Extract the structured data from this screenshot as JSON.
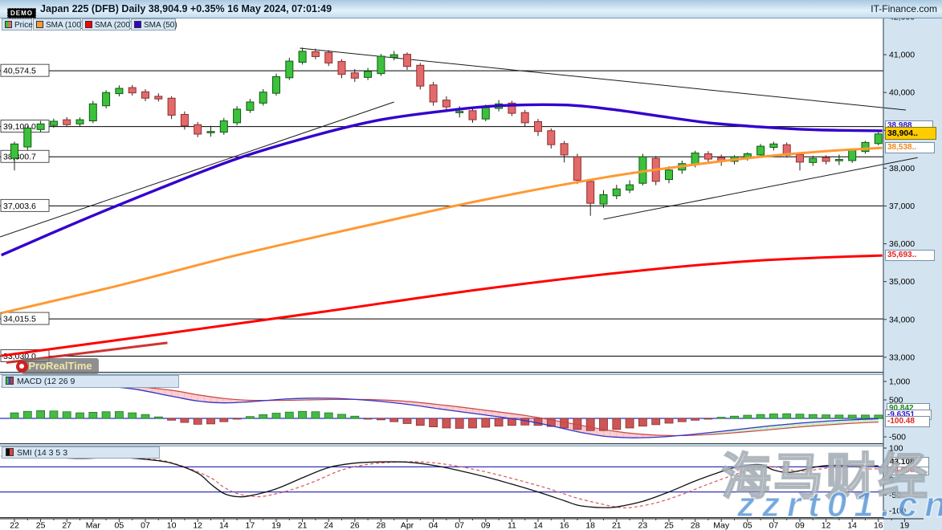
{
  "header": {
    "demo": "DEMO",
    "title": "Japan 225 (DFB) Daily 38,904.9 +0.35% 16 May 2024, 07:01:49",
    "brand": "IT-Finance.com"
  },
  "legend": {
    "price": "Price",
    "sma100": "SMA (100)",
    "sma200": "SMA (200)",
    "sma50": "SMA (50)"
  },
  "price_panel": {
    "right_ticks": [
      [
        "42,000",
        42000
      ],
      [
        "41,000",
        41000
      ],
      [
        "40,000",
        40000
      ],
      [
        "39,000",
        39000
      ],
      [
        "38,000",
        38000
      ],
      [
        "37,000",
        37000
      ],
      [
        "36,000",
        36000
      ],
      [
        "35,000",
        35000
      ],
      [
        "34,000",
        34000
      ],
      [
        "33,000",
        33000
      ]
    ],
    "levels": [
      [
        "40,574.5",
        40574.5
      ],
      [
        "39,100.0",
        39100
      ],
      [
        "38,300.7",
        38300.7
      ],
      [
        "37,003.6",
        37003.6
      ],
      [
        "34,015.5",
        34015.5
      ],
      [
        "33,030.0",
        33030
      ]
    ],
    "labels": {
      "sma50": "38,988",
      "last": "38,904..",
      "sma100": "38,538..",
      "sma200": "35,693.."
    }
  },
  "macd_panel": {
    "legend": "MACD (12 26 9",
    "right_ticks": [
      [
        "1,000",
        1000
      ],
      [
        "500",
        500
      ],
      [
        "-500",
        -500
      ]
    ],
    "values": {
      "histogram": "90.842",
      "macd": "-9.6351",
      "signal": "-100.48"
    }
  },
  "smi_panel": {
    "legend": "SMI (14 3 5 3",
    "right_ticks": [
      [
        "100",
        100
      ],
      [
        "0",
        0
      ],
      [
        "-50",
        -50
      ],
      [
        "-100",
        -100
      ]
    ],
    "values": {
      "smi": "43.108",
      "signal": "34.008"
    }
  },
  "x_axis": {
    "labels": [
      "22",
      "25",
      "27",
      "Mar",
      "05",
      "07",
      "10",
      "12",
      "14",
      "17",
      "19",
      "21",
      "24",
      "26",
      "28",
      "Apr",
      "04",
      "07",
      "09",
      "11",
      "14",
      "16",
      "18",
      "21",
      "23",
      "25",
      "28",
      "May",
      "05",
      "07",
      "09",
      "12",
      "14",
      "16",
      "19"
    ]
  },
  "watermarks": {
    "prorealtime": "ProRealTime",
    "brand_cn": "海马财经",
    "site": "zzrt01.cn"
  },
  "colors": {
    "up": "#3cc13c",
    "down": "#e36a6a",
    "sma50": "#3300cc",
    "sma100": "#ff9933",
    "sma200": "#ff0000",
    "last_price_bg": "#ffcc00",
    "panel_bg": "#ffffff",
    "chrome_bg": "#c3d9e8",
    "axis_bg": "#d3e4f0"
  },
  "chart_data": {
    "type": "candlestick",
    "instrument": "Japan 225 (DFB)",
    "timeframe": "Daily",
    "last": 38904.9,
    "change": "+0.35%",
    "as_of": "16 May 2024, 07:01:49",
    "ylim": [
      33000,
      42000
    ],
    "candles": [
      [
        38260,
        38700,
        37940,
        38640
      ],
      [
        38560,
        39120,
        38480,
        39060
      ],
      [
        39020,
        39250,
        38960,
        39170
      ],
      [
        39130,
        39310,
        39070,
        39240
      ],
      [
        39280,
        39350,
        39090,
        39150
      ],
      [
        39170,
        39340,
        39110,
        39280
      ],
      [
        39250,
        39780,
        39190,
        39700
      ],
      [
        39650,
        40060,
        39580,
        40000
      ],
      [
        39970,
        40190,
        39900,
        40110
      ],
      [
        40130,
        40200,
        39920,
        39990
      ],
      [
        40020,
        40090,
        39770,
        39850
      ],
      [
        39900,
        39980,
        39760,
        39830
      ],
      [
        39850,
        39900,
        39300,
        39400
      ],
      [
        39420,
        39500,
        39020,
        39120
      ],
      [
        39150,
        39220,
        38820,
        38900
      ],
      [
        38950,
        39120,
        38830,
        38970
      ],
      [
        38950,
        39330,
        38880,
        39250
      ],
      [
        39200,
        39640,
        39130,
        39560
      ],
      [
        39530,
        39830,
        39460,
        39750
      ],
      [
        39720,
        40090,
        39650,
        40010
      ],
      [
        39980,
        40500,
        39920,
        40420
      ],
      [
        40390,
        40920,
        40330,
        40830
      ],
      [
        40800,
        41190,
        40740,
        41090
      ],
      [
        41080,
        41160,
        40880,
        40950
      ],
      [
        41060,
        41120,
        40700,
        40780
      ],
      [
        40820,
        40880,
        40380,
        40480
      ],
      [
        40520,
        40620,
        40280,
        40380
      ],
      [
        40400,
        40650,
        40330,
        40560
      ],
      [
        40500,
        41020,
        40440,
        40960
      ],
      [
        40930,
        41100,
        40850,
        41000
      ],
      [
        41010,
        41060,
        40600,
        40690
      ],
      [
        40720,
        40780,
        40080,
        40170
      ],
      [
        40200,
        40280,
        39650,
        39750
      ],
      [
        39800,
        39900,
        39480,
        39620
      ],
      [
        39480,
        39640,
        39340,
        39500
      ],
      [
        39520,
        39580,
        39200,
        39280
      ],
      [
        39300,
        39680,
        39240,
        39600
      ],
      [
        39580,
        39800,
        39500,
        39700
      ],
      [
        39720,
        39780,
        39380,
        39450
      ],
      [
        39470,
        39540,
        39100,
        39200
      ],
      [
        39230,
        39300,
        38850,
        38970
      ],
      [
        38990,
        39050,
        38520,
        38620
      ],
      [
        38650,
        38720,
        38150,
        38350
      ],
      [
        38300,
        38380,
        37580,
        37680
      ],
      [
        37650,
        37720,
        36740,
        37070
      ],
      [
        37050,
        37420,
        36950,
        37300
      ],
      [
        37270,
        37560,
        37180,
        37450
      ],
      [
        37420,
        37680,
        37340,
        37560
      ],
      [
        37600,
        38380,
        37540,
        38300
      ],
      [
        38260,
        38320,
        37550,
        37650
      ],
      [
        37700,
        38050,
        37600,
        37950
      ],
      [
        37950,
        38200,
        37850,
        38120
      ],
      [
        38100,
        38460,
        38020,
        38400
      ],
      [
        38380,
        38450,
        38150,
        38240
      ],
      [
        38280,
        38360,
        38060,
        38180
      ],
      [
        38180,
        38340,
        38100,
        38300
      ],
      [
        38280,
        38420,
        38200,
        38380
      ],
      [
        38350,
        38640,
        38290,
        38580
      ],
      [
        38550,
        38700,
        38470,
        38640
      ],
      [
        38620,
        38680,
        38280,
        38340
      ],
      [
        38360,
        38420,
        37940,
        38160
      ],
      [
        38150,
        38330,
        38060,
        38260
      ],
      [
        38280,
        38340,
        38100,
        38180
      ],
      [
        38220,
        38360,
        38080,
        38230
      ],
      [
        38200,
        38520,
        38140,
        38480
      ],
      [
        38440,
        38720,
        38380,
        38680
      ],
      [
        38650,
        38950,
        38600,
        38905
      ]
    ],
    "sma50": [
      [
        -1,
        35700
      ],
      [
        5,
        36600
      ],
      [
        11,
        37450
      ],
      [
        17,
        38250
      ],
      [
        23,
        38870
      ],
      [
        28,
        39280
      ],
      [
        33,
        39520
      ],
      [
        37,
        39650
      ],
      [
        42,
        39670
      ],
      [
        45.5,
        39560
      ],
      [
        49,
        39390
      ],
      [
        53,
        39200
      ],
      [
        57,
        39090
      ],
      [
        60,
        39030
      ],
      [
        63,
        39000
      ],
      [
        66.3,
        38988
      ]
    ],
    "sma100": [
      [
        -1,
        34170
      ],
      [
        8,
        34900
      ],
      [
        17,
        35700
      ],
      [
        26.5,
        36450
      ],
      [
        35.7,
        37150
      ],
      [
        45,
        37750
      ],
      [
        51,
        38050
      ],
      [
        57,
        38300
      ],
      [
        62,
        38450
      ],
      [
        66.3,
        38538
      ]
    ],
    "sma200": [
      [
        -1,
        33040
      ],
      [
        11,
        33600
      ],
      [
        23.5,
        34200
      ],
      [
        35.7,
        34800
      ],
      [
        48,
        35300
      ],
      [
        57,
        35560
      ],
      [
        66.3,
        35693
      ]
    ],
    "trendlines": [
      {
        "points": [
          [
            21.8,
            41172
          ],
          [
            68.1,
            39537
          ]
        ]
      },
      {
        "points": [
          [
            -1.1,
            36183
          ],
          [
            29,
            39750
          ]
        ]
      },
      {
        "points": [
          [
            45,
            36650
          ],
          [
            69,
            38280
          ]
        ]
      }
    ],
    "macd": {
      "hist": [
        150,
        190,
        210,
        200,
        180,
        150,
        165,
        180,
        185,
        150,
        105,
        40,
        -50,
        -110,
        -160,
        -150,
        -90,
        -20,
        50,
        100,
        140,
        170,
        190,
        180,
        150,
        110,
        60,
        -10,
        -40,
        -90,
        -140,
        -190,
        -230,
        -260,
        -270,
        -260,
        -240,
        -210,
        -190,
        -180,
        -190,
        -220,
        -260,
        -300,
        -330,
        -330,
        -300,
        -260,
        -210,
        -170,
        -130,
        -90,
        -50,
        -10,
        30,
        60,
        85,
        105,
        120,
        125,
        115,
        105,
        95,
        90,
        88,
        90,
        90,
        90.842
      ],
      "macd": [
        [
          -1,
          860
        ],
        [
          0,
          880
        ],
        [
          3,
          900
        ],
        [
          6,
          890
        ],
        [
          9,
          800
        ],
        [
          12,
          600
        ],
        [
          14,
          470
        ],
        [
          16,
          420
        ],
        [
          18,
          450
        ],
        [
          21,
          530
        ],
        [
          24,
          545
        ],
        [
          27,
          490
        ],
        [
          30,
          380
        ],
        [
          33,
          230
        ],
        [
          36,
          90
        ],
        [
          39,
          -60
        ],
        [
          41,
          -200
        ],
        [
          43,
          -360
        ],
        [
          45,
          -480
        ],
        [
          47,
          -525
        ],
        [
          49,
          -510
        ],
        [
          51,
          -460
        ],
        [
          53,
          -390
        ],
        [
          55,
          -310
        ],
        [
          57,
          -230
        ],
        [
          59,
          -160
        ],
        [
          61,
          -100
        ],
        [
          63,
          -55
        ],
        [
          65,
          -25
        ],
        [
          66,
          -9.6
        ]
      ],
      "signal": [
        [
          -1,
          850
        ],
        [
          0,
          860
        ],
        [
          3,
          880
        ],
        [
          6,
          895
        ],
        [
          9,
          870
        ],
        [
          12,
          760
        ],
        [
          14,
          640
        ],
        [
          16,
          540
        ],
        [
          18,
          490
        ],
        [
          21,
          490
        ],
        [
          24,
          510
        ],
        [
          27,
          510
        ],
        [
          30,
          460
        ],
        [
          33,
          350
        ],
        [
          36,
          220
        ],
        [
          39,
          80
        ],
        [
          41,
          -40
        ],
        [
          43,
          -170
        ],
        [
          45,
          -300
        ],
        [
          47,
          -400
        ],
        [
          49,
          -455
        ],
        [
          51,
          -465
        ],
        [
          53,
          -440
        ],
        [
          55,
          -390
        ],
        [
          57,
          -330
        ],
        [
          59,
          -265
        ],
        [
          61,
          -205
        ],
        [
          63,
          -155
        ],
        [
          65,
          -115
        ],
        [
          66,
          -100.5
        ]
      ]
    },
    "smi": {
      "smi": [
        [
          -1,
          74
        ],
        [
          2,
          72
        ],
        [
          5,
          67
        ],
        [
          8,
          70
        ],
        [
          10,
          64
        ],
        [
          12,
          52
        ],
        [
          14,
          20
        ],
        [
          15,
          -15
        ],
        [
          16,
          -45
        ],
        [
          17,
          -55
        ],
        [
          18,
          -52
        ],
        [
          20,
          -30
        ],
        [
          22,
          5
        ],
        [
          24,
          38
        ],
        [
          26,
          52
        ],
        [
          28,
          56
        ],
        [
          30,
          55
        ],
        [
          32,
          45
        ],
        [
          34,
          28
        ],
        [
          36,
          8
        ],
        [
          38,
          -15
        ],
        [
          40,
          -40
        ],
        [
          42,
          -68
        ],
        [
          43,
          -82
        ],
        [
          44,
          -88
        ],
        [
          45,
          -90
        ],
        [
          46,
          -88
        ],
        [
          48,
          -70
        ],
        [
          50,
          -40
        ],
        [
          52,
          -5
        ],
        [
          54,
          25
        ],
        [
          55,
          38
        ],
        [
          56,
          45
        ],
        [
          57,
          47
        ],
        [
          58,
          30
        ],
        [
          59,
          22
        ],
        [
          60,
          28
        ],
        [
          61,
          38
        ],
        [
          62,
          44
        ],
        [
          63,
          45
        ],
        [
          64,
          44
        ],
        [
          65,
          43.5
        ],
        [
          66,
          43.1
        ]
      ],
      "signal": [
        [
          -1,
          76
        ],
        [
          2,
          73
        ],
        [
          5,
          69
        ],
        [
          8,
          71
        ],
        [
          11,
          62
        ],
        [
          13,
          40
        ],
        [
          15,
          5
        ],
        [
          16,
          -25
        ],
        [
          17,
          -45
        ],
        [
          18,
          -53
        ],
        [
          19,
          -54
        ],
        [
          21,
          -35
        ],
        [
          23,
          -5
        ],
        [
          25,
          30
        ],
        [
          27,
          48
        ],
        [
          29,
          55
        ],
        [
          31,
          56
        ],
        [
          33,
          48
        ],
        [
          35,
          33
        ],
        [
          37,
          14
        ],
        [
          39,
          -8
        ],
        [
          41,
          -32
        ],
        [
          43,
          -60
        ],
        [
          45,
          -80
        ],
        [
          46,
          -88
        ],
        [
          47,
          -90
        ],
        [
          49,
          -75
        ],
        [
          51,
          -48
        ],
        [
          53,
          -15
        ],
        [
          55,
          15
        ],
        [
          56,
          28
        ],
        [
          57,
          38
        ],
        [
          58,
          40
        ],
        [
          59,
          32
        ],
        [
          60,
          26
        ],
        [
          61,
          30
        ],
        [
          62,
          36
        ],
        [
          63,
          41
        ],
        [
          64,
          43
        ],
        [
          65,
          34
        ],
        [
          66,
          34.0
        ]
      ]
    }
  }
}
